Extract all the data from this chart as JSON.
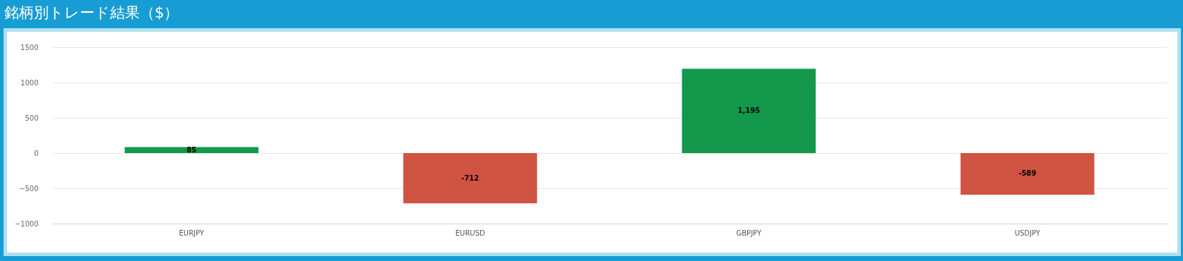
{
  "chart_data": {
    "type": "bar",
    "title": "銘柄別トレード結果（$）",
    "categories": [
      "EURJPY",
      "EURUSD",
      "GBPJPY",
      "USDJPY"
    ],
    "values": [
      85,
      -712,
      1195,
      -589
    ],
    "colors": [
      "#13984b",
      "#cf5442",
      "#13984b",
      "#cf5442"
    ],
    "value_labels": [
      "85",
      "-712",
      "1,195",
      "-589"
    ],
    "ylim": [
      -1000,
      1500
    ],
    "yticks": [
      -1000,
      -500,
      0,
      500,
      1000,
      1500
    ],
    "grid": "y"
  }
}
